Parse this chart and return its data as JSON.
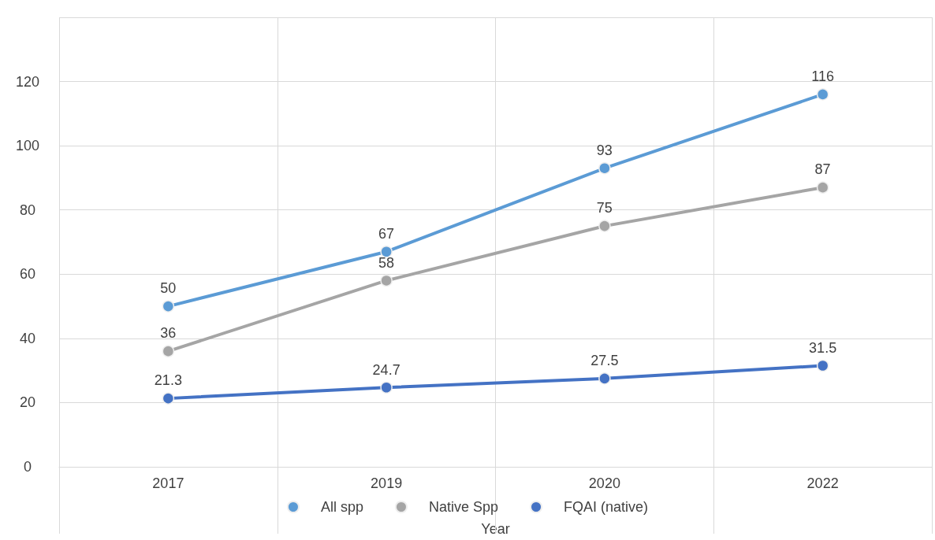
{
  "chart_data": {
    "type": "line",
    "xlabel": "Year",
    "categories": [
      "2017",
      "2019",
      "2020",
      "2022"
    ],
    "series": [
      {
        "name": "All spp",
        "color": "#5b9bd5",
        "values": [
          50,
          67,
          93,
          116
        ]
      },
      {
        "name": "Native Spp",
        "color": "#a5a5a5",
        "values": [
          36,
          58,
          75,
          87
        ]
      },
      {
        "name": "FQAI (native)",
        "color": "#4472c4",
        "values": [
          21.3,
          24.7,
          27.5,
          31.5
        ]
      }
    ],
    "ylim": [
      0,
      140
    ],
    "yticks": [
      0,
      20,
      40,
      60,
      80,
      100,
      120,
      {
        "value": 140,
        "label": null
      }
    ],
    "grid": true,
    "legend": "bottom",
    "marker": "circle",
    "line_style": "solid",
    "data_labels": true
  }
}
